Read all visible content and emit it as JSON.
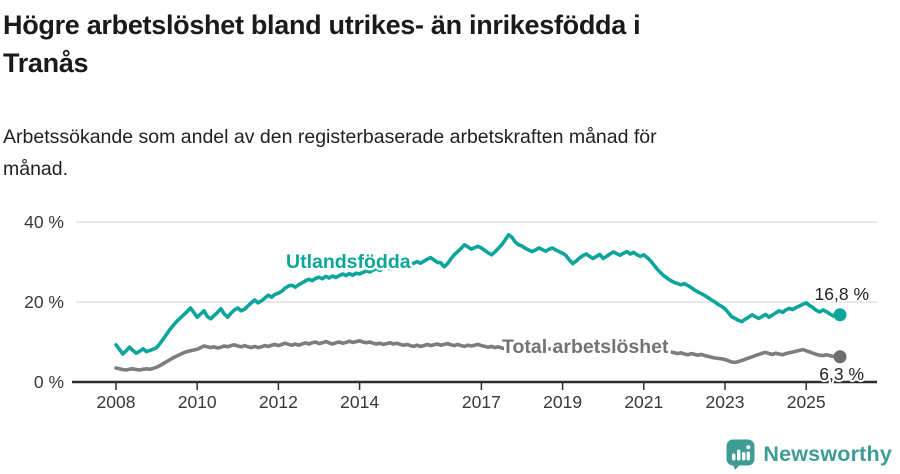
{
  "header": {
    "title_line1": "Högre arbetslöshet bland utrikes- än inrikesfödda i",
    "title_line2": "Tranås",
    "subtitle_line1": "Arbetssökande som andel av den registerbaserade arbetskraften månad för",
    "subtitle_line2": "månad."
  },
  "chart_data": {
    "type": "line",
    "title": "Högre arbetslöshet bland utrikes- än inrikesfödda i Tranås",
    "subtitle": "Arbetssökande som andel av den registerbaserade arbetskraften månad för månad.",
    "x_unit": "month",
    "x_start_year": 2008,
    "points_per_year": 12,
    "x_axis_ticks": [
      "2008",
      "2010",
      "2012",
      "2014",
      "2017",
      "2019",
      "2021",
      "2023",
      "2025"
    ],
    "x_axis_tick_years": [
      2008,
      2010,
      2012,
      2014,
      2017,
      2019,
      2021,
      2023,
      2025
    ],
    "y_axis_ticks": [
      "40 %",
      "20 %",
      "0 %"
    ],
    "y_axis_tick_values": [
      40,
      20,
      0
    ],
    "ylim": [
      0,
      42
    ],
    "grid": "horizontal",
    "legend_position": "inline-labels",
    "axis_color": "#2d2d2d",
    "grid_color": "#dbdbdb",
    "tick_label_color": "#383838",
    "value_label_color": "#222222",
    "series": [
      {
        "name": "Utlandsfödda",
        "color": "#0ba59b",
        "end_label": "16,8 %",
        "end_value": 16.8,
        "values": [
          9.3,
          8.2,
          7.0,
          7.8,
          8.7,
          7.9,
          7.2,
          7.7,
          8.3,
          7.6,
          7.9,
          8.2,
          8.6,
          9.6,
          10.8,
          12.0,
          13.2,
          14.2,
          15.2,
          16.0,
          16.8,
          17.6,
          18.5,
          17.4,
          16.2,
          17.0,
          17.8,
          16.4,
          15.8,
          16.6,
          17.4,
          18.3,
          17.0,
          16.2,
          17.2,
          18.0,
          18.5,
          17.8,
          18.2,
          19.0,
          19.8,
          20.5,
          19.8,
          20.3,
          21.0,
          21.7,
          21.2,
          21.9,
          22.2,
          22.7,
          23.5,
          24.0,
          24.2,
          23.7,
          24.3,
          24.8,
          25.3,
          25.7,
          25.3,
          25.9,
          26.2,
          25.8,
          26.4,
          26.0,
          26.5,
          26.1,
          26.6,
          27.0,
          26.6,
          27.1,
          26.7,
          27.2,
          27.0,
          27.4,
          27.8,
          27.5,
          28.0,
          28.3,
          27.9,
          28.4,
          28.7,
          28.3,
          28.8,
          29.1,
          28.7,
          29.1,
          29.5,
          29.2,
          29.7,
          30.1,
          29.7,
          30.2,
          30.7,
          31.1,
          30.5,
          29.9,
          29.8,
          28.8,
          29.6,
          30.8,
          31.8,
          32.6,
          33.4,
          34.3,
          33.8,
          33.2,
          33.6,
          33.9,
          33.5,
          32.9,
          32.3,
          31.8,
          32.5,
          33.4,
          34.3,
          35.5,
          36.8,
          36.2,
          35.0,
          34.3,
          34.0,
          33.4,
          33.0,
          32.6,
          33.0,
          33.5,
          33.1,
          32.7,
          33.2,
          33.5,
          33.0,
          32.6,
          32.2,
          31.6,
          30.5,
          29.6,
          30.2,
          31.0,
          31.6,
          32.0,
          31.4,
          30.9,
          31.4,
          31.9,
          30.9,
          31.4,
          32.0,
          32.5,
          32.1,
          31.7,
          32.2,
          32.6,
          32.0,
          32.4,
          31.8,
          31.4,
          31.8,
          31.1,
          30.3,
          29.2,
          28.2,
          27.3,
          26.5,
          25.9,
          25.3,
          24.9,
          24.6,
          24.3,
          24.6,
          24.1,
          23.6,
          23.0,
          22.5,
          22.1,
          21.6,
          21.1,
          20.5,
          20.0,
          19.4,
          18.9,
          18.3,
          17.3,
          16.3,
          15.9,
          15.4,
          15.1,
          15.7,
          16.2,
          16.8,
          16.3,
          15.9,
          16.4,
          16.9,
          16.2,
          16.7,
          17.3,
          17.8,
          17.4,
          18.0,
          18.4,
          18.1,
          18.6,
          19.0,
          19.4,
          19.8,
          19.1,
          18.6,
          17.9,
          17.5,
          18.0,
          17.6,
          17.0,
          16.5,
          17.0,
          16.8
        ]
      },
      {
        "name": "Total arbetslöshet",
        "color": "#7d7d7d",
        "end_label": "6,3 %",
        "end_value": 6.3,
        "values": [
          3.5,
          3.3,
          3.1,
          3.0,
          3.2,
          3.3,
          3.1,
          3.0,
          3.2,
          3.3,
          3.2,
          3.4,
          3.7,
          4.1,
          4.6,
          5.1,
          5.6,
          6.1,
          6.5,
          6.9,
          7.3,
          7.6,
          7.8,
          8.0,
          8.2,
          8.6,
          9.0,
          8.8,
          8.6,
          8.8,
          8.5,
          8.7,
          9.0,
          8.8,
          9.1,
          9.3,
          9.0,
          8.8,
          9.1,
          8.8,
          8.6,
          8.9,
          8.6,
          8.8,
          9.1,
          8.9,
          9.2,
          9.4,
          9.1,
          9.4,
          9.7,
          9.4,
          9.2,
          9.5,
          9.2,
          9.5,
          9.8,
          9.5,
          9.8,
          10.0,
          9.6,
          9.8,
          10.1,
          9.8,
          9.5,
          9.8,
          10.0,
          9.7,
          9.9,
          10.2,
          9.9,
          10.1,
          10.3,
          10.0,
          9.8,
          10.0,
          9.7,
          9.5,
          9.7,
          9.4,
          9.6,
          9.8,
          9.5,
          9.7,
          9.4,
          9.2,
          9.4,
          9.1,
          8.9,
          9.2,
          8.9,
          9.1,
          9.4,
          9.1,
          9.3,
          9.5,
          9.2,
          9.4,
          9.6,
          9.3,
          9.1,
          9.4,
          9.1,
          8.9,
          9.2,
          9.0,
          9.2,
          9.4,
          9.1,
          8.9,
          8.7,
          8.9,
          8.6,
          8.8,
          8.5,
          8.3,
          8.6,
          8.4,
          8.7,
          8.9,
          8.6,
          8.4,
          8.7,
          8.4,
          8.2,
          8.5,
          8.2,
          8.0,
          8.3,
          8.1,
          8.4,
          8.6,
          8.3,
          8.1,
          8.4,
          8.1,
          7.9,
          8.2,
          8.0,
          7.8,
          8.1,
          7.9,
          8.2,
          8.4,
          8.6,
          8.8,
          9.2,
          9.5,
          9.3,
          9.6,
          9.3,
          9.1,
          8.9,
          8.7,
          8.5,
          8.7,
          8.4,
          8.6,
          8.8,
          8.5,
          8.3,
          8.1,
          7.9,
          7.7,
          7.5,
          7.3,
          7.1,
          7.3,
          7.0,
          6.8,
          7.1,
          6.9,
          6.7,
          6.9,
          6.6,
          6.4,
          6.2,
          6.0,
          5.9,
          5.8,
          5.6,
          5.3,
          5.0,
          4.9,
          5.1,
          5.4,
          5.7,
          6.0,
          6.3,
          6.6,
          6.9,
          7.2,
          7.4,
          7.1,
          6.9,
          7.2,
          7.0,
          6.8,
          7.1,
          7.3,
          7.5,
          7.7,
          7.9,
          8.1,
          7.8,
          7.5,
          7.2,
          6.9,
          6.7,
          6.6,
          6.8,
          6.6,
          6.4,
          6.5,
          6.3
        ]
      }
    ]
  },
  "footer": {
    "brand": "Newsworthy",
    "brand_color": "#3f9c95",
    "logo_icon": "newsworthy-bubble-barchart-icon"
  }
}
